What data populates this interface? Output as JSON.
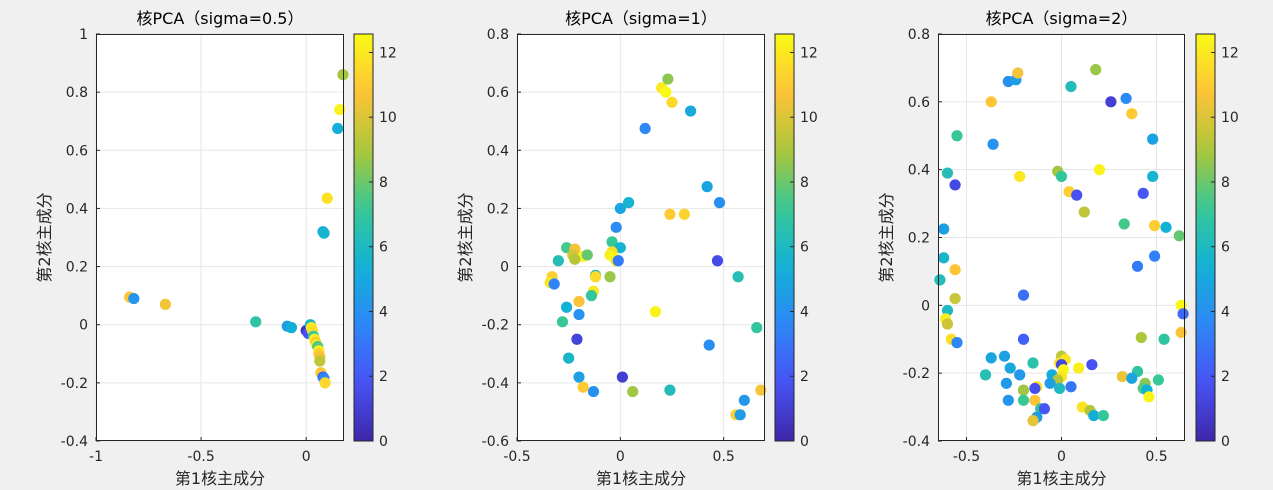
{
  "figure": {
    "background": "#f0f0f0"
  },
  "chart_data": [
    {
      "type": "scatter",
      "title": "核PCA（sigma=0.5）",
      "xlabel": "第1核主成分",
      "ylabel": "第2核主成分",
      "xlim": [
        -1,
        0.18
      ],
      "ylim": [
        -0.4,
        1
      ],
      "xticks": [
        -1,
        -0.5,
        0
      ],
      "xtick_labels": [
        "-1",
        "-0.5",
        "0"
      ],
      "yticks": [
        -0.4,
        -0.2,
        0,
        0.2,
        0.4,
        0.6,
        0.8,
        1
      ],
      "ytick_labels": [
        "-0.4",
        "-0.2",
        "0",
        "0.2",
        "0.4",
        "0.6",
        "0.8",
        "1"
      ],
      "grid": true,
      "colorbar": {
        "ticks": [
          0,
          2,
          4,
          6,
          8,
          10,
          12
        ],
        "labels": [
          "0",
          "2",
          "4",
          "6",
          "8",
          "10",
          "12"
        ],
        "range": [
          0,
          12.57
        ]
      },
      "points": [
        {
          "x": -0.84,
          "y": 0.095,
          "c": 10.8
        },
        {
          "x": -0.82,
          "y": 0.09,
          "c": 4.2
        },
        {
          "x": -0.67,
          "y": 0.07,
          "c": 10.5
        },
        {
          "x": -0.24,
          "y": 0.01,
          "c": 6.8
        },
        {
          "x": -0.09,
          "y": -0.005,
          "c": 4.5
        },
        {
          "x": -0.07,
          "y": -0.01,
          "c": 5.2
        },
        {
          "x": 0.0,
          "y": -0.02,
          "c": 0.5
        },
        {
          "x": 0.01,
          "y": -0.03,
          "c": 1.8
        },
        {
          "x": 0.02,
          "y": 0.0,
          "c": 5.8
        },
        {
          "x": 0.025,
          "y": -0.01,
          "c": 12.1
        },
        {
          "x": 0.03,
          "y": -0.02,
          "c": 11.6
        },
        {
          "x": 0.035,
          "y": -0.04,
          "c": 7.1
        },
        {
          "x": 0.04,
          "y": -0.05,
          "c": 12.3
        },
        {
          "x": 0.045,
          "y": -0.06,
          "c": 11.0
        },
        {
          "x": 0.05,
          "y": -0.07,
          "c": 12.4
        },
        {
          "x": 0.055,
          "y": -0.075,
          "c": 7.6
        },
        {
          "x": 0.06,
          "y": -0.09,
          "c": 12.2
        },
        {
          "x": 0.06,
          "y": -0.1,
          "c": 11.2
        },
        {
          "x": 0.065,
          "y": -0.11,
          "c": 10.6
        },
        {
          "x": 0.065,
          "y": -0.125,
          "c": 9.4
        },
        {
          "x": 0.07,
          "y": -0.165,
          "c": 10.9
        },
        {
          "x": 0.08,
          "y": -0.18,
          "c": 2.3
        },
        {
          "x": 0.085,
          "y": -0.185,
          "c": 3.6
        },
        {
          "x": 0.09,
          "y": -0.2,
          "c": 11.4
        },
        {
          "x": 0.08,
          "y": 0.32,
          "c": 5.0
        },
        {
          "x": 0.085,
          "y": 0.315,
          "c": 5.6
        },
        {
          "x": 0.1,
          "y": 0.435,
          "c": 11.8
        },
        {
          "x": 0.15,
          "y": 0.675,
          "c": 5.3
        },
        {
          "x": 0.16,
          "y": 0.74,
          "c": 12.3
        },
        {
          "x": 0.175,
          "y": 0.86,
          "c": 8.9
        }
      ]
    },
    {
      "type": "scatter",
      "title": "核PCA（sigma=1）",
      "xlabel": "第1核主成分",
      "ylabel": "第2核主成分",
      "xlim": [
        -0.5,
        0.7
      ],
      "ylim": [
        -0.6,
        0.8
      ],
      "xticks": [
        -0.5,
        0,
        0.5
      ],
      "xtick_labels": [
        "-0.5",
        "0",
        "0.5"
      ],
      "yticks": [
        -0.6,
        -0.4,
        -0.2,
        0,
        0.2,
        0.4,
        0.6,
        0.8
      ],
      "ytick_labels": [
        "-0.6",
        "-0.4",
        "-0.2",
        "0",
        "0.2",
        "0.4",
        "0.6",
        "0.8"
      ],
      "grid": true,
      "colorbar": {
        "ticks": [
          0,
          2,
          4,
          6,
          8,
          10,
          12
        ],
        "labels": [
          "0",
          "2",
          "4",
          "6",
          "8",
          "10",
          "12"
        ],
        "range": [
          0,
          12.57
        ]
      },
      "points": [
        {
          "x": 0.2,
          "y": 0.615,
          "c": 12.0
        },
        {
          "x": 0.23,
          "y": 0.645,
          "c": 8.5
        },
        {
          "x": 0.22,
          "y": 0.6,
          "c": 12.5
        },
        {
          "x": 0.25,
          "y": 0.565,
          "c": 11.5
        },
        {
          "x": 0.34,
          "y": 0.535,
          "c": 5.0
        },
        {
          "x": 0.12,
          "y": 0.475,
          "c": 3.6
        },
        {
          "x": 0.42,
          "y": 0.275,
          "c": 4.8
        },
        {
          "x": 0.48,
          "y": 0.22,
          "c": 4.0
        },
        {
          "x": 0.04,
          "y": 0.22,
          "c": 5.6
        },
        {
          "x": 0.0,
          "y": 0.2,
          "c": 4.9
        },
        {
          "x": 0.24,
          "y": 0.18,
          "c": 11.0
        },
        {
          "x": 0.31,
          "y": 0.18,
          "c": 11.3
        },
        {
          "x": -0.02,
          "y": 0.135,
          "c": 3.8
        },
        {
          "x": -0.04,
          "y": 0.085,
          "c": 7.2
        },
        {
          "x": -0.26,
          "y": 0.065,
          "c": 7.4
        },
        {
          "x": -0.22,
          "y": 0.06,
          "c": 10.6
        },
        {
          "x": -0.23,
          "y": 0.04,
          "c": 9.8
        },
        {
          "x": 0.0,
          "y": 0.065,
          "c": 5.5
        },
        {
          "x": -0.04,
          "y": 0.05,
          "c": 11.6
        },
        {
          "x": -0.05,
          "y": 0.04,
          "c": 12.2
        },
        {
          "x": -0.03,
          "y": 0.03,
          "c": 12.4
        },
        {
          "x": -0.02,
          "y": 0.02,
          "c": 12.0
        },
        {
          "x": -0.01,
          "y": 0.02,
          "c": 3.2
        },
        {
          "x": -0.18,
          "y": 0.035,
          "c": 12.3
        },
        {
          "x": -0.16,
          "y": 0.04,
          "c": 7.9
        },
        {
          "x": -0.3,
          "y": 0.02,
          "c": 6.3
        },
        {
          "x": -0.22,
          "y": 0.025,
          "c": 9.2
        },
        {
          "x": -0.33,
          "y": -0.035,
          "c": 11.2
        },
        {
          "x": -0.34,
          "y": -0.055,
          "c": 11.9
        },
        {
          "x": -0.32,
          "y": -0.06,
          "c": 3.5
        },
        {
          "x": -0.12,
          "y": -0.03,
          "c": 6.1
        },
        {
          "x": -0.05,
          "y": -0.035,
          "c": 8.7
        },
        {
          "x": -0.12,
          "y": -0.035,
          "c": 11.5
        },
        {
          "x": -0.13,
          "y": -0.085,
          "c": 12.0
        },
        {
          "x": -0.14,
          "y": -0.1,
          "c": 7.0
        },
        {
          "x": -0.2,
          "y": -0.12,
          "c": 10.7
        },
        {
          "x": -0.26,
          "y": -0.14,
          "c": 5.4
        },
        {
          "x": -0.2,
          "y": -0.165,
          "c": 4.1
        },
        {
          "x": -0.28,
          "y": -0.19,
          "c": 7.2
        },
        {
          "x": -0.21,
          "y": -0.25,
          "c": 1.2
        },
        {
          "x": 0.17,
          "y": -0.155,
          "c": 12.3
        },
        {
          "x": 0.66,
          "y": -0.21,
          "c": 7.0
        },
        {
          "x": 0.43,
          "y": -0.27,
          "c": 3.9
        },
        {
          "x": -0.25,
          "y": -0.315,
          "c": 5.8
        },
        {
          "x": -0.2,
          "y": -0.38,
          "c": 4.6
        },
        {
          "x": 0.01,
          "y": -0.38,
          "c": 1.0
        },
        {
          "x": -0.18,
          "y": -0.415,
          "c": 11.0
        },
        {
          "x": -0.13,
          "y": -0.43,
          "c": 4.0
        },
        {
          "x": 0.06,
          "y": -0.43,
          "c": 8.8
        },
        {
          "x": 0.24,
          "y": -0.425,
          "c": 6.2
        },
        {
          "x": 0.68,
          "y": -0.425,
          "c": 10.6
        },
        {
          "x": 0.6,
          "y": -0.46,
          "c": 4.3
        },
        {
          "x": 0.56,
          "y": -0.51,
          "c": 11.2
        },
        {
          "x": 0.58,
          "y": -0.51,
          "c": 4.5
        },
        {
          "x": 0.57,
          "y": -0.035,
          "c": 6.4
        },
        {
          "x": 0.47,
          "y": 0.02,
          "c": 1.5
        }
      ]
    },
    {
      "type": "scatter",
      "title": "核PCA（sigma=2）",
      "xlabel": "第1核主成分",
      "ylabel": "第2核主成分",
      "xlim": [
        -0.65,
        0.65
      ],
      "ylim": [
        -0.4,
        0.8
      ],
      "xticks": [
        -0.5,
        0,
        0.5
      ],
      "xtick_labels": [
        "-0.5",
        "0",
        "0.5"
      ],
      "yticks": [
        -0.4,
        -0.2,
        0,
        0.2,
        0.4,
        0.6,
        0.8
      ],
      "ytick_labels": [
        "-0.4",
        "-0.2",
        "0",
        "0.2",
        "0.4",
        "0.6",
        "0.8"
      ],
      "grid": true,
      "colorbar": {
        "ticks": [
          0,
          2,
          4,
          6,
          8,
          10,
          12
        ],
        "labels": [
          "0",
          "2",
          "4",
          "6",
          "8",
          "10",
          "12"
        ],
        "range": [
          0,
          12.57
        ]
      },
      "points": [
        {
          "x": -0.28,
          "y": 0.66,
          "c": 4.0
        },
        {
          "x": -0.24,
          "y": 0.665,
          "c": 4.6
        },
        {
          "x": -0.23,
          "y": 0.685,
          "c": 10.6
        },
        {
          "x": 0.05,
          "y": 0.645,
          "c": 6.2
        },
        {
          "x": 0.18,
          "y": 0.695,
          "c": 8.7
        },
        {
          "x": -0.37,
          "y": 0.6,
          "c": 10.8
        },
        {
          "x": 0.26,
          "y": 0.6,
          "c": 1.0
        },
        {
          "x": 0.34,
          "y": 0.61,
          "c": 3.8
        },
        {
          "x": 0.37,
          "y": 0.565,
          "c": 11.0
        },
        {
          "x": -0.36,
          "y": 0.475,
          "c": 4.1
        },
        {
          "x": -0.55,
          "y": 0.5,
          "c": 7.2
        },
        {
          "x": 0.48,
          "y": 0.49,
          "c": 4.7
        },
        {
          "x": -0.6,
          "y": 0.39,
          "c": 6.3
        },
        {
          "x": -0.56,
          "y": 0.355,
          "c": 1.4
        },
        {
          "x": -0.22,
          "y": 0.38,
          "c": 11.9
        },
        {
          "x": -0.02,
          "y": 0.395,
          "c": 8.8
        },
        {
          "x": 0.0,
          "y": 0.38,
          "c": 7.0
        },
        {
          "x": 0.2,
          "y": 0.4,
          "c": 12.3
        },
        {
          "x": 0.48,
          "y": 0.38,
          "c": 5.6
        },
        {
          "x": 0.04,
          "y": 0.335,
          "c": 11.2
        },
        {
          "x": 0.08,
          "y": 0.325,
          "c": 1.8
        },
        {
          "x": 0.43,
          "y": 0.33,
          "c": 2.0
        },
        {
          "x": 0.12,
          "y": 0.275,
          "c": 9.4
        },
        {
          "x": 0.33,
          "y": 0.24,
          "c": 7.4
        },
        {
          "x": 0.49,
          "y": 0.235,
          "c": 11.1
        },
        {
          "x": 0.55,
          "y": 0.23,
          "c": 5.4
        },
        {
          "x": 0.62,
          "y": 0.205,
          "c": 7.9
        },
        {
          "x": -0.62,
          "y": 0.225,
          "c": 4.6
        },
        {
          "x": -0.62,
          "y": 0.14,
          "c": 5.7
        },
        {
          "x": 0.4,
          "y": 0.115,
          "c": 3.2
        },
        {
          "x": 0.49,
          "y": 0.145,
          "c": 3.4
        },
        {
          "x": -0.56,
          "y": 0.105,
          "c": 10.8
        },
        {
          "x": -0.64,
          "y": 0.075,
          "c": 6.2
        },
        {
          "x": -0.56,
          "y": 0.02,
          "c": 9.6
        },
        {
          "x": -0.2,
          "y": 0.03,
          "c": 2.8
        },
        {
          "x": 0.63,
          "y": 0.0,
          "c": 12.5
        },
        {
          "x": -0.6,
          "y": -0.015,
          "c": 6.0
        },
        {
          "x": 0.64,
          "y": -0.025,
          "c": 2.5
        },
        {
          "x": -0.61,
          "y": -0.04,
          "c": 12.2
        },
        {
          "x": -0.6,
          "y": -0.055,
          "c": 9.7
        },
        {
          "x": 0.63,
          "y": -0.08,
          "c": 10.7
        },
        {
          "x": -0.58,
          "y": -0.1,
          "c": 11.6
        },
        {
          "x": -0.55,
          "y": -0.11,
          "c": 3.6
        },
        {
          "x": 0.42,
          "y": -0.095,
          "c": 9.0
        },
        {
          "x": 0.54,
          "y": -0.1,
          "c": 6.9
        },
        {
          "x": -0.2,
          "y": -0.1,
          "c": 2.3
        },
        {
          "x": -0.37,
          "y": -0.155,
          "c": 4.9
        },
        {
          "x": -0.3,
          "y": -0.15,
          "c": 4.7
        },
        {
          "x": 0.0,
          "y": -0.15,
          "c": 9.4
        },
        {
          "x": 0.02,
          "y": -0.16,
          "c": 11.9
        },
        {
          "x": -0.01,
          "y": -0.17,
          "c": 11.6
        },
        {
          "x": 0.0,
          "y": -0.175,
          "c": 1.3
        },
        {
          "x": 0.16,
          "y": -0.175,
          "c": 1.8
        },
        {
          "x": -0.27,
          "y": -0.185,
          "c": 5.0
        },
        {
          "x": -0.15,
          "y": -0.17,
          "c": 6.6
        },
        {
          "x": 0.09,
          "y": -0.185,
          "c": 12.2
        },
        {
          "x": 0.01,
          "y": -0.19,
          "c": 12.4
        },
        {
          "x": -0.22,
          "y": -0.205,
          "c": 4.3
        },
        {
          "x": -0.4,
          "y": -0.205,
          "c": 6.4
        },
        {
          "x": -0.05,
          "y": -0.205,
          "c": 5.2
        },
        {
          "x": 0.0,
          "y": -0.21,
          "c": 11.9
        },
        {
          "x": -0.02,
          "y": -0.22,
          "c": 9.3
        },
        {
          "x": -0.06,
          "y": -0.23,
          "c": 4.6
        },
        {
          "x": -0.29,
          "y": -0.23,
          "c": 4.4
        },
        {
          "x": -0.01,
          "y": -0.245,
          "c": 6.0
        },
        {
          "x": -0.13,
          "y": -0.24,
          "c": 11.8
        },
        {
          "x": -0.14,
          "y": -0.245,
          "c": 1.6
        },
        {
          "x": 0.05,
          "y": -0.24,
          "c": 3.1
        },
        {
          "x": -0.2,
          "y": -0.25,
          "c": 8.8
        },
        {
          "x": -0.2,
          "y": -0.28,
          "c": 7.2
        },
        {
          "x": -0.28,
          "y": -0.28,
          "c": 4.2
        },
        {
          "x": 0.4,
          "y": -0.195,
          "c": 6.8
        },
        {
          "x": 0.32,
          "y": -0.21,
          "c": 10.4
        },
        {
          "x": 0.37,
          "y": -0.215,
          "c": 4.9
        },
        {
          "x": 0.44,
          "y": -0.23,
          "c": 8.5
        },
        {
          "x": 0.51,
          "y": -0.22,
          "c": 7.2
        },
        {
          "x": 0.43,
          "y": -0.245,
          "c": 7.6
        },
        {
          "x": 0.45,
          "y": -0.25,
          "c": 5.4
        },
        {
          "x": 0.46,
          "y": -0.27,
          "c": 12.3
        },
        {
          "x": -0.14,
          "y": -0.28,
          "c": 10.8
        },
        {
          "x": -0.11,
          "y": -0.305,
          "c": 7.0
        },
        {
          "x": -0.09,
          "y": -0.305,
          "c": 1.9
        },
        {
          "x": -0.13,
          "y": -0.33,
          "c": 4.5
        },
        {
          "x": -0.15,
          "y": -0.34,
          "c": 10.2
        },
        {
          "x": 0.11,
          "y": -0.3,
          "c": 11.8
        },
        {
          "x": 0.15,
          "y": -0.31,
          "c": 9.2
        },
        {
          "x": 0.17,
          "y": -0.325,
          "c": 5.2
        },
        {
          "x": 0.22,
          "y": -0.325,
          "c": 7.0
        }
      ]
    }
  ]
}
